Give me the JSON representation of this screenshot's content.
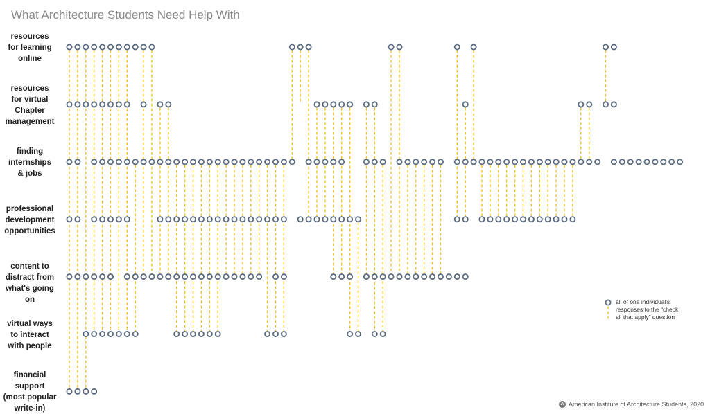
{
  "chart_data": {
    "type": "dot-matrix",
    "title": "What Architecture Students Need Help With",
    "rows": [
      {
        "label_lines": [
          "resources",
          "for learning",
          "online"
        ],
        "dots": [
          1,
          2,
          3,
          4,
          5,
          6,
          7,
          8,
          9,
          10,
          11,
          28,
          29,
          30,
          40,
          41,
          48,
          50,
          66,
          67
        ]
      },
      {
        "label_lines": [
          "resources",
          "for virtual",
          "Chapter",
          "management"
        ],
        "dots": [
          1,
          2,
          3,
          4,
          5,
          6,
          7,
          8,
          10,
          12,
          13,
          31,
          32,
          33,
          34,
          35,
          37,
          38,
          49,
          63,
          64,
          66,
          67
        ]
      },
      {
        "label_lines": [
          "finding",
          "internships",
          "& jobs"
        ],
        "dots": [
          1,
          2,
          4,
          5,
          6,
          7,
          8,
          9,
          10,
          11,
          12,
          13,
          14,
          15,
          16,
          17,
          18,
          19,
          20,
          21,
          22,
          23,
          24,
          25,
          26,
          27,
          28,
          30,
          31,
          32,
          33,
          34,
          37,
          38,
          39,
          41,
          42,
          43,
          44,
          45,
          46,
          48,
          49,
          50,
          51,
          52,
          53,
          54,
          55,
          56,
          57,
          58,
          59,
          60,
          61,
          62,
          63,
          64,
          65,
          67,
          68,
          69,
          70,
          71,
          72,
          73,
          74,
          75
        ]
      },
      {
        "label_lines": [
          "professional",
          "development",
          "opportunities"
        ],
        "dots": [
          1,
          2,
          4,
          5,
          6,
          7,
          8,
          12,
          13,
          14,
          15,
          16,
          17,
          18,
          19,
          20,
          21,
          22,
          23,
          24,
          25,
          26,
          27,
          29,
          30,
          31,
          32,
          33,
          34,
          35,
          36,
          48,
          49,
          51,
          52,
          53,
          54,
          55,
          56,
          57,
          58,
          59,
          60,
          61,
          62
        ]
      },
      {
        "label_lines": [
          "content to",
          "distract from",
          "what's going on"
        ],
        "dots": [
          1,
          2,
          3,
          4,
          5,
          6,
          8,
          9,
          10,
          11,
          12,
          13,
          14,
          15,
          16,
          17,
          18,
          19,
          20,
          21,
          22,
          23,
          24,
          26,
          27,
          33,
          34,
          35,
          37,
          38,
          39,
          40,
          41,
          42,
          43,
          44,
          45,
          46,
          47,
          48,
          49
        ]
      },
      {
        "label_lines": [
          "virtual ways",
          "to interact",
          "with people"
        ],
        "dots": [
          3,
          4,
          5,
          6,
          7,
          8,
          9,
          14,
          15,
          16,
          17,
          18,
          19,
          25,
          26,
          27,
          35,
          36,
          38,
          39
        ]
      },
      {
        "label_lines": [
          "financial",
          "support",
          "(most popular",
          "write-in)"
        ],
        "dots": [
          1,
          2,
          3,
          4
        ]
      }
    ],
    "connections": [
      {
        "col": 1,
        "from": 0,
        "to": 6
      },
      {
        "col": 2,
        "from": 0,
        "to": 6
      },
      {
        "col": 3,
        "from": 0,
        "to": 6
      },
      {
        "col": 4,
        "from": 0,
        "to": 5
      },
      {
        "col": 5,
        "from": 0,
        "to": 5
      },
      {
        "col": 6,
        "from": 0,
        "to": 5
      },
      {
        "col": 7,
        "from": 0,
        "to": 5
      },
      {
        "col": 8,
        "from": 0,
        "to": 5
      },
      {
        "col": 9,
        "from": 2,
        "to": 5
      },
      {
        "col": 10,
        "from": 0,
        "to": 4
      },
      {
        "col": 11,
        "from": 0,
        "to": 4
      },
      {
        "col": 12,
        "from": 1,
        "to": 4
      },
      {
        "col": 13,
        "from": 1,
        "to": 4
      },
      {
        "col": 14,
        "from": 2,
        "to": 5
      },
      {
        "col": 15,
        "from": 2,
        "to": 5
      },
      {
        "col": 16,
        "from": 2,
        "to": 5
      },
      {
        "col": 17,
        "from": 2,
        "to": 5
      },
      {
        "col": 18,
        "from": 2,
        "to": 5
      },
      {
        "col": 19,
        "from": 2,
        "to": 5
      },
      {
        "col": 20,
        "from": 2,
        "to": 4
      },
      {
        "col": 21,
        "from": 2,
        "to": 4
      },
      {
        "col": 22,
        "from": 2,
        "to": 4
      },
      {
        "col": 23,
        "from": 2,
        "to": 4
      },
      {
        "col": 24,
        "from": 2,
        "to": 4
      },
      {
        "col": 25,
        "from": 2,
        "to": 5
      },
      {
        "col": 26,
        "from": 2,
        "to": 5
      },
      {
        "col": 27,
        "from": 2,
        "to": 5
      },
      {
        "col": 28,
        "from": 0,
        "to": 2
      },
      {
        "col": 29,
        "from": 0,
        "to": 1
      },
      {
        "col": 30,
        "from": 0,
        "to": 3
      },
      {
        "col": 31,
        "from": 1,
        "to": 3
      },
      {
        "col": 32,
        "from": 1,
        "to": 3
      },
      {
        "col": 33,
        "from": 1,
        "to": 4
      },
      {
        "col": 34,
        "from": 1,
        "to": 4
      },
      {
        "col": 35,
        "from": 1,
        "to": 5
      },
      {
        "col": 36,
        "from": 3,
        "to": 5
      },
      {
        "col": 37,
        "from": 1,
        "to": 4
      },
      {
        "col": 38,
        "from": 1,
        "to": 5
      },
      {
        "col": 39,
        "from": 2,
        "to": 5
      },
      {
        "col": 40,
        "from": 0,
        "to": 4
      },
      {
        "col": 41,
        "from": 0,
        "to": 4
      },
      {
        "col": 42,
        "from": 2,
        "to": 4
      },
      {
        "col": 43,
        "from": 2,
        "to": 4
      },
      {
        "col": 44,
        "from": 2,
        "to": 4
      },
      {
        "col": 45,
        "from": 2,
        "to": 4
      },
      {
        "col": 46,
        "from": 2,
        "to": 4
      },
      {
        "col": 48,
        "from": 0,
        "to": 3
      },
      {
        "col": 49,
        "from": 1,
        "to": 3
      },
      {
        "col": 50,
        "from": 0,
        "to": 2
      },
      {
        "col": 51,
        "from": 2,
        "to": 3
      },
      {
        "col": 52,
        "from": 2,
        "to": 3
      },
      {
        "col": 53,
        "from": 2,
        "to": 3
      },
      {
        "col": 54,
        "from": 2,
        "to": 3
      },
      {
        "col": 55,
        "from": 2,
        "to": 3
      },
      {
        "col": 56,
        "from": 2,
        "to": 3
      },
      {
        "col": 57,
        "from": 2,
        "to": 3
      },
      {
        "col": 58,
        "from": 2,
        "to": 3
      },
      {
        "col": 59,
        "from": 2,
        "to": 3
      },
      {
        "col": 60,
        "from": 2,
        "to": 3
      },
      {
        "col": 61,
        "from": 2,
        "to": 3
      },
      {
        "col": 62,
        "from": 2,
        "to": 3
      },
      {
        "col": 63,
        "from": 1,
        "to": 2
      },
      {
        "col": 64,
        "from": 1,
        "to": 2
      },
      {
        "col": 66,
        "from": 0,
        "to": 1
      }
    ],
    "legend": {
      "lines": [
        "all of one individual's",
        "responses to the “check",
        "all that apply” question"
      ]
    },
    "colors": {
      "dot_stroke": "#5a6a7e",
      "line": "#f3c21f"
    }
  },
  "credit": "American Institute of Architecture Students, 2020"
}
